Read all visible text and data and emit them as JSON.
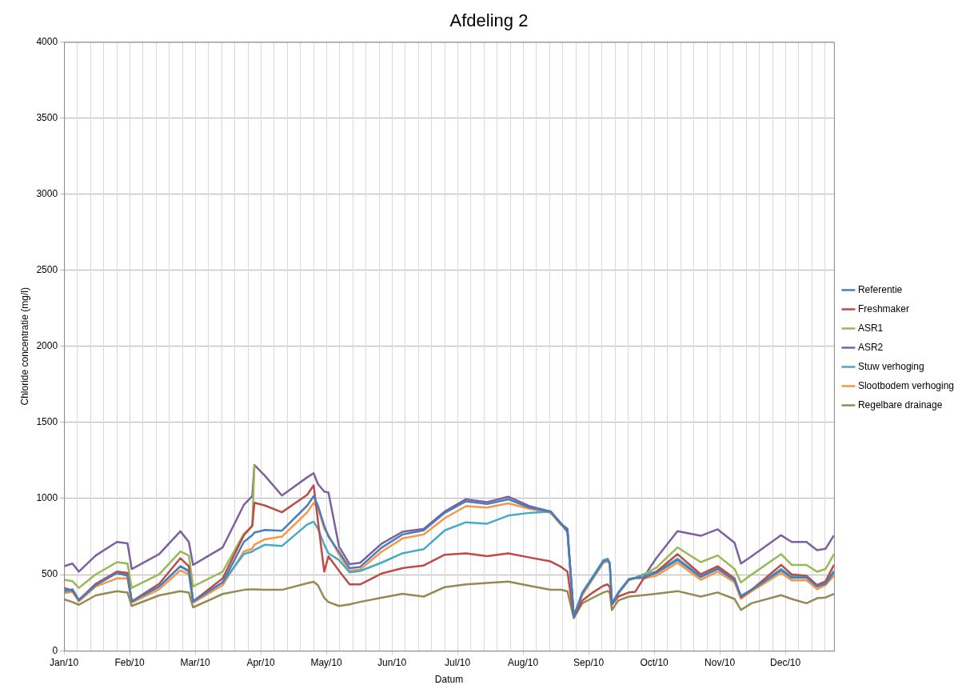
{
  "chart_data": {
    "type": "line",
    "title": "Afdeling 2",
    "xlabel": "Datum",
    "ylabel": "Chloride concentratie (mg/l)",
    "x": [
      "2010-01-01",
      "2010-01-05",
      "2010-01-08",
      "2010-01-16",
      "2010-01-26",
      "2010-01-31",
      "2010-02-02",
      "2010-02-15",
      "2010-02-25",
      "2010-03-01",
      "2010-03-03",
      "2010-03-17",
      "2010-03-27",
      "2010-03-31",
      "2010-04-01",
      "2010-04-06",
      "2010-04-14",
      "2010-04-26",
      "2010-04-29",
      "2010-05-01",
      "2010-05-04",
      "2010-05-06",
      "2010-05-11",
      "2010-05-16",
      "2010-05-21",
      "2010-05-31",
      "2010-06-10",
      "2010-06-20",
      "2010-06-30",
      "2010-07-10",
      "2010-07-20",
      "2010-07-30",
      "2010-08-09",
      "2010-08-19",
      "2010-08-24",
      "2010-08-27",
      "2010-08-30",
      "2010-09-03",
      "2010-09-08",
      "2010-09-13",
      "2010-09-15",
      "2010-09-16",
      "2010-09-17",
      "2010-09-20",
      "2010-09-25",
      "2010-09-28",
      "2010-10-02",
      "2010-10-08",
      "2010-10-18",
      "2010-10-29",
      "2010-11-06",
      "2010-11-14",
      "2010-11-17",
      "2010-11-22",
      "2010-12-06",
      "2010-12-11",
      "2010-12-18",
      "2010-12-23",
      "2010-12-27",
      "2010-12-31"
    ],
    "series": [
      {
        "name": "Referentie",
        "color": "#4a7ebb",
        "values": [
          395,
          404,
          333,
          431,
          511,
          493,
          324,
          422,
          555,
          520,
          324,
          449,
          715,
          759,
          777,
          794,
          789,
          954,
          1016,
          954,
          821,
          750,
          649,
          543,
          551,
          676,
          764,
          791,
          906,
          982,
          965,
          995,
          941,
          915,
          835,
          780,
          220,
          378,
          480,
          587,
          596,
          573,
          308,
          378,
          468,
          478,
          484,
          511,
          596,
          484,
          537,
          463,
          360,
          400,
          528,
          480,
          480,
          422,
          440,
          516
        ]
      },
      {
        "name": "Freshmaker",
        "color": "#be4b48",
        "values": [
          413,
          395,
          333,
          440,
          520,
          511,
          324,
          440,
          608,
          555,
          324,
          475,
          759,
          821,
          972,
          954,
          910,
          1025,
          1087,
          856,
          520,
          620,
          525,
          436,
          436,
          507,
          543,
          560,
          631,
          640,
          622,
          640,
          613,
          587,
          551,
          520,
          220,
          330,
          383,
          427,
          436,
          418,
          303,
          356,
          383,
          387,
          475,
          519,
          635,
          502,
          555,
          475,
          351,
          400,
          564,
          502,
          493,
          431,
          457,
          564
        ]
      },
      {
        "name": "ASR1",
        "color": "#98b954",
        "values": [
          466,
          457,
          413,
          502,
          582,
          573,
          413,
          502,
          652,
          626,
          422,
          520,
          768,
          821,
          1220,
          null,
          null,
          null,
          null,
          null,
          null,
          null,
          null,
          null,
          null,
          null,
          null,
          null,
          null,
          null,
          null,
          null,
          null,
          null,
          null,
          null,
          null,
          null,
          null,
          null,
          null,
          null,
          null,
          null,
          null,
          null,
          502,
          546,
          679,
          582,
          626,
          537,
          449,
          500,
          635,
          564,
          564,
          519,
          537,
          635
        ]
      },
      {
        "name": "ASR2",
        "color": "#7d60a0",
        "values": [
          555,
          573,
          520,
          626,
          715,
          706,
          537,
          635,
          785,
          715,
          564,
          679,
          958,
          1016,
          1220,
          1149,
          1020,
          1140,
          1167,
          1096,
          1046,
          1039,
          684,
          569,
          578,
          702,
          782,
          800,
          915,
          995,
          977,
          1012,
          950,
          915,
          835,
          800,
          220,
          null,
          null,
          null,
          null,
          null,
          null,
          null,
          null,
          null,
          484,
          608,
          786,
          755,
          798,
          709,
          573,
          620,
          759,
          715,
          715,
          661,
          670,
          759
        ]
      },
      {
        "name": "Stuw verhoging",
        "color": "#46aac5",
        "values": [
          387,
          395,
          333,
          431,
          511,
          502,
          324,
          422,
          555,
          528,
          324,
          449,
          635,
          652,
          661,
          697,
          688,
          830,
          848,
          803,
          697,
          640,
          596,
          515,
          524,
          578,
          640,
          667,
          791,
          844,
          835,
          888,
          906,
          915,
          835,
          780,
          230,
          383,
          489,
          596,
          605,
          578,
          312,
          383,
          472,
          480,
          502,
          519,
          605,
          493,
          546,
          463,
          360,
          400,
          537,
          489,
          489,
          422,
          449,
          525
        ]
      },
      {
        "name": "Slootbodem verhoging",
        "color": "#f79646",
        "values": [
          378,
          387,
          324,
          422,
          475,
          475,
          316,
          404,
          528,
          502,
          316,
          431,
          652,
          670,
          697,
          732,
          750,
          910,
          972,
          936,
          803,
          760,
          631,
          525,
          534,
          649,
          738,
          764,
          871,
          950,
          941,
          968,
          933,
          906,
          826,
          800,
          215,
          365,
          472,
          578,
          587,
          569,
          303,
          374,
          463,
          475,
          475,
          493,
          578,
          466,
          519,
          449,
          342,
          390,
          511,
          463,
          463,
          404,
          431,
          493
        ]
      },
      {
        "name": "Regelbare drainage",
        "color": "#948a54",
        "values": [
          338,
          320,
          302,
          364,
          391,
          382,
          294,
          364,
          391,
          382,
          285,
          373,
          400,
          403,
          403,
          400,
          400,
          444,
          453,
          431,
          347,
          320,
          294,
          305,
          321,
          348,
          374,
          356,
          418,
          436,
          445,
          454,
          427,
          401,
          401,
          390,
          215,
          312,
          348,
          383,
          392,
          383,
          268,
          330,
          356,
          360,
          365,
          374,
          392,
          356,
          383,
          340,
          268,
          312,
          365,
          340,
          312,
          345,
          350,
          374
        ]
      }
    ],
    "xlim": [
      "2010-01-01",
      "2010-12-31"
    ],
    "xticks": [
      {
        "value": "2010-01-01",
        "label": "Jan/10"
      },
      {
        "value": "2010-02-01",
        "label": "Feb/10"
      },
      {
        "value": "2010-03-04",
        "label": "Mar/10"
      },
      {
        "value": "2010-04-04",
        "label": "Apr/10"
      },
      {
        "value": "2010-05-05",
        "label": "May/10"
      },
      {
        "value": "2010-06-05",
        "label": "Jun/10"
      },
      {
        "value": "2010-07-06",
        "label": "Jul/10"
      },
      {
        "value": "2010-08-06",
        "label": "Aug/10"
      },
      {
        "value": "2010-09-06",
        "label": "Sep/10"
      },
      {
        "value": "2010-10-07",
        "label": "Oct/10"
      },
      {
        "value": "2010-11-07",
        "label": "Nov/10"
      },
      {
        "value": "2010-12-08",
        "label": "Dec/10"
      }
    ],
    "ylim": [
      0,
      4000
    ],
    "yticks": [
      0,
      500,
      1000,
      1500,
      2000,
      2500,
      3000,
      3500,
      4000
    ],
    "grid": true,
    "legend": "right",
    "line_style": "solid"
  }
}
